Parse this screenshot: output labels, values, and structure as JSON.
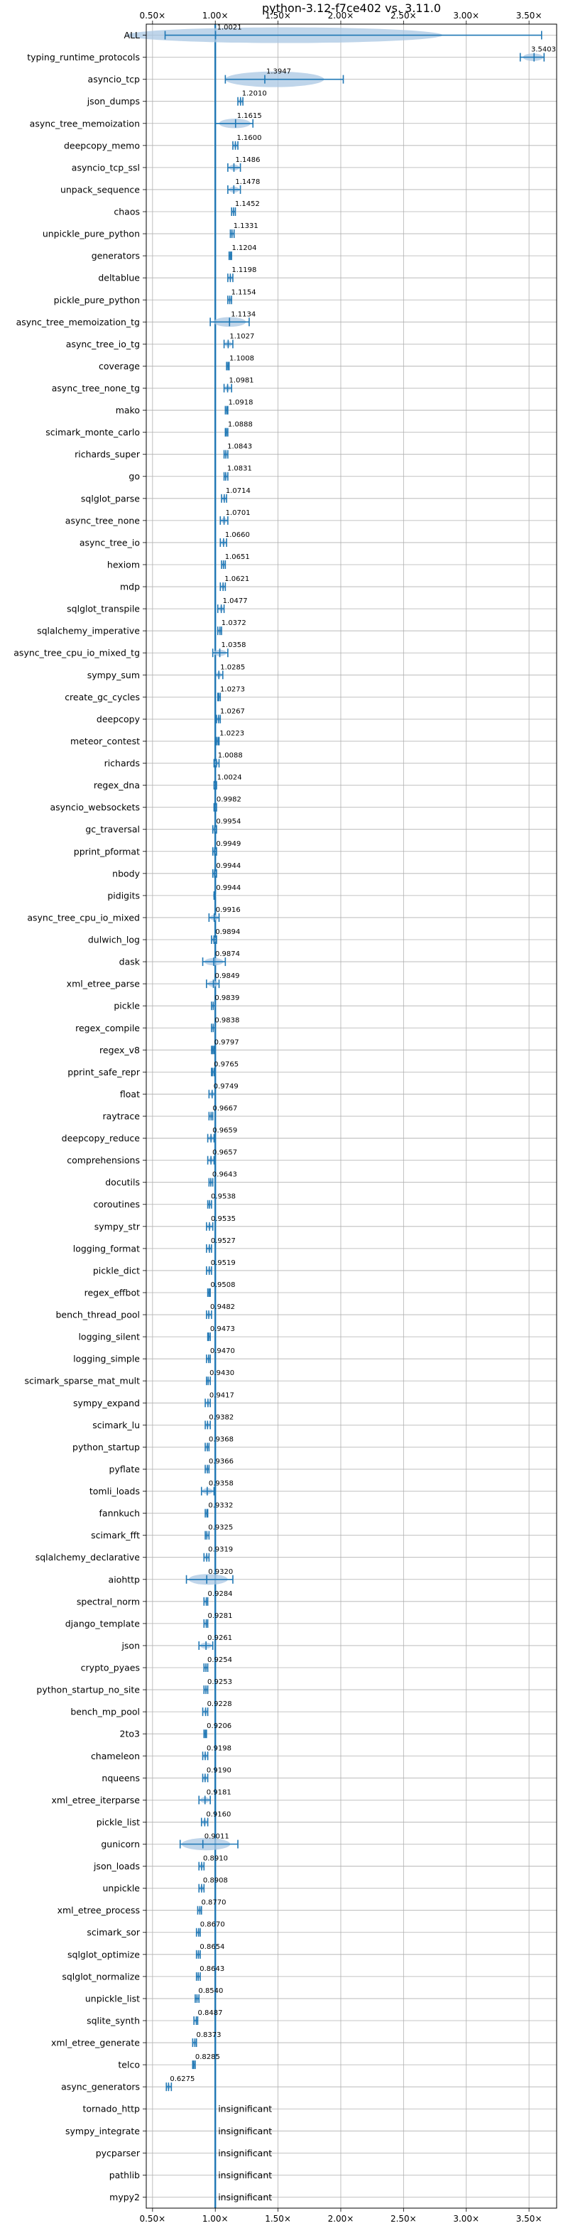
{
  "chart_data": {
    "type": "violin",
    "title": "python-3.12-f7ce402 vs. 3.11.0",
    "xlabel": "",
    "ylabel": "",
    "xlim": [
      0.45,
      3.72
    ],
    "xticks": [
      0.5,
      1.0,
      1.5,
      2.0,
      2.5,
      3.0,
      3.5
    ],
    "xtick_labels": [
      "0.50×",
      "1.00×",
      "1.50×",
      "2.00×",
      "2.50×",
      "3.00×",
      "3.50×"
    ],
    "reference_line": 1.0,
    "grid": true,
    "legend": "none",
    "accent_color": "#1f77b4",
    "violin_color": "#a9c7e3",
    "benchmarks": [
      {
        "name": "ALL",
        "value": 1.0021,
        "label": "1.0021",
        "lo": 0.6,
        "hi": 3.6
      },
      {
        "name": "typing_runtime_protocols",
        "value": 3.5403,
        "label": "3.5403",
        "lo": 3.43,
        "hi": 3.62
      },
      {
        "name": "asyncio_tcp",
        "value": 1.3947,
        "label": "1.3947",
        "lo": 1.08,
        "hi": 2.02
      },
      {
        "name": "json_dumps",
        "value": 1.201,
        "label": "1.2010",
        "lo": 1.18,
        "hi": 1.22
      },
      {
        "name": "async_tree_memoization",
        "value": 1.1615,
        "label": "1.1615",
        "lo": 1.0,
        "hi": 1.3
      },
      {
        "name": "deepcopy_memo",
        "value": 1.16,
        "label": "1.1600",
        "lo": 1.14,
        "hi": 1.18
      },
      {
        "name": "asyncio_tcp_ssl",
        "value": 1.1486,
        "label": "1.1486",
        "lo": 1.1,
        "hi": 1.2
      },
      {
        "name": "unpack_sequence",
        "value": 1.1478,
        "label": "1.1478",
        "lo": 1.1,
        "hi": 1.2
      },
      {
        "name": "chaos",
        "value": 1.1452,
        "label": "1.1452",
        "lo": 1.13,
        "hi": 1.16
      },
      {
        "name": "unpickle_pure_python",
        "value": 1.1331,
        "label": "1.1331",
        "lo": 1.12,
        "hi": 1.15
      },
      {
        "name": "generators",
        "value": 1.1204,
        "label": "1.1204",
        "lo": 1.11,
        "hi": 1.13
      },
      {
        "name": "deltablue",
        "value": 1.1198,
        "label": "1.1198",
        "lo": 1.1,
        "hi": 1.14
      },
      {
        "name": "pickle_pure_python",
        "value": 1.1154,
        "label": "1.1154",
        "lo": 1.1,
        "hi": 1.13
      },
      {
        "name": "async_tree_memoization_tg",
        "value": 1.1134,
        "label": "1.1134",
        "lo": 0.96,
        "hi": 1.27
      },
      {
        "name": "async_tree_io_tg",
        "value": 1.1027,
        "label": "1.1027",
        "lo": 1.07,
        "hi": 1.14
      },
      {
        "name": "coverage",
        "value": 1.1008,
        "label": "1.1008",
        "lo": 1.09,
        "hi": 1.11
      },
      {
        "name": "async_tree_none_tg",
        "value": 1.0981,
        "label": "1.0981",
        "lo": 1.07,
        "hi": 1.13
      },
      {
        "name": "mako",
        "value": 1.0918,
        "label": "1.0918",
        "lo": 1.08,
        "hi": 1.1
      },
      {
        "name": "scimark_monte_carlo",
        "value": 1.0888,
        "label": "1.0888",
        "lo": 1.08,
        "hi": 1.1
      },
      {
        "name": "richards_super",
        "value": 1.0843,
        "label": "1.0843",
        "lo": 1.07,
        "hi": 1.1
      },
      {
        "name": "go",
        "value": 1.0831,
        "label": "1.0831",
        "lo": 1.07,
        "hi": 1.1
      },
      {
        "name": "sqlglot_parse",
        "value": 1.0714,
        "label": "1.0714",
        "lo": 1.05,
        "hi": 1.09
      },
      {
        "name": "async_tree_none",
        "value": 1.0701,
        "label": "1.0701",
        "lo": 1.04,
        "hi": 1.1
      },
      {
        "name": "async_tree_io",
        "value": 1.066,
        "label": "1.0660",
        "lo": 1.04,
        "hi": 1.09
      },
      {
        "name": "hexiom",
        "value": 1.0651,
        "label": "1.0651",
        "lo": 1.05,
        "hi": 1.08
      },
      {
        "name": "mdp",
        "value": 1.0621,
        "label": "1.0621",
        "lo": 1.04,
        "hi": 1.08
      },
      {
        "name": "sqlglot_transpile",
        "value": 1.0477,
        "label": "1.0477",
        "lo": 1.02,
        "hi": 1.07
      },
      {
        "name": "sqlalchemy_imperative",
        "value": 1.0372,
        "label": "1.0372",
        "lo": 1.02,
        "hi": 1.05
      },
      {
        "name": "async_tree_cpu_io_mixed_tg",
        "value": 1.0358,
        "label": "1.0358",
        "lo": 0.98,
        "hi": 1.1
      },
      {
        "name": "sympy_sum",
        "value": 1.0285,
        "label": "1.0285",
        "lo": 1.0,
        "hi": 1.06
      },
      {
        "name": "create_gc_cycles",
        "value": 1.0273,
        "label": "1.0273",
        "lo": 1.02,
        "hi": 1.04
      },
      {
        "name": "deepcopy",
        "value": 1.0267,
        "label": "1.0267",
        "lo": 1.01,
        "hi": 1.04
      },
      {
        "name": "meteor_contest",
        "value": 1.0223,
        "label": "1.0223",
        "lo": 1.01,
        "hi": 1.03
      },
      {
        "name": "richards",
        "value": 1.0088,
        "label": "1.0088",
        "lo": 0.99,
        "hi": 1.03
      },
      {
        "name": "regex_dna",
        "value": 1.0024,
        "label": "1.0024",
        "lo": 0.99,
        "hi": 1.01
      },
      {
        "name": "asyncio_websockets",
        "value": 0.9982,
        "label": "0.9982",
        "lo": 0.99,
        "hi": 1.01
      },
      {
        "name": "gc_traversal",
        "value": 0.9954,
        "label": "0.9954",
        "lo": 0.98,
        "hi": 1.01
      },
      {
        "name": "pprint_pformat",
        "value": 0.9949,
        "label": "0.9949",
        "lo": 0.98,
        "hi": 1.01
      },
      {
        "name": "nbody",
        "value": 0.9944,
        "label": "0.9944",
        "lo": 0.98,
        "hi": 1.01
      },
      {
        "name": "pidigits",
        "value": 0.9944,
        "label": "0.9944",
        "lo": 0.99,
        "hi": 1.0
      },
      {
        "name": "async_tree_cpu_io_mixed",
        "value": 0.9916,
        "label": "0.9916",
        "lo": 0.95,
        "hi": 1.03
      },
      {
        "name": "dulwich_log",
        "value": 0.9894,
        "label": "0.9894",
        "lo": 0.97,
        "hi": 1.01
      },
      {
        "name": "dask",
        "value": 0.9874,
        "label": "0.9874",
        "lo": 0.9,
        "hi": 1.08
      },
      {
        "name": "xml_etree_parse",
        "value": 0.9849,
        "label": "0.9849",
        "lo": 0.93,
        "hi": 1.03
      },
      {
        "name": "pickle",
        "value": 0.9839,
        "label": "0.9839",
        "lo": 0.97,
        "hi": 1.0
      },
      {
        "name": "regex_compile",
        "value": 0.9838,
        "label": "0.9838",
        "lo": 0.97,
        "hi": 1.0
      },
      {
        "name": "regex_v8",
        "value": 0.9797,
        "label": "0.9797",
        "lo": 0.97,
        "hi": 0.99
      },
      {
        "name": "pprint_safe_repr",
        "value": 0.9765,
        "label": "0.9765",
        "lo": 0.97,
        "hi": 0.99
      },
      {
        "name": "float",
        "value": 0.9749,
        "label": "0.9749",
        "lo": 0.95,
        "hi": 1.0
      },
      {
        "name": "raytrace",
        "value": 0.9667,
        "label": "0.9667",
        "lo": 0.95,
        "hi": 0.98
      },
      {
        "name": "deepcopy_reduce",
        "value": 0.9659,
        "label": "0.9659",
        "lo": 0.94,
        "hi": 0.99
      },
      {
        "name": "comprehensions",
        "value": 0.9657,
        "label": "0.9657",
        "lo": 0.94,
        "hi": 0.99
      },
      {
        "name": "docutils",
        "value": 0.9643,
        "label": "0.9643",
        "lo": 0.95,
        "hi": 0.98
      },
      {
        "name": "coroutines",
        "value": 0.9538,
        "label": "0.9538",
        "lo": 0.94,
        "hi": 0.97
      },
      {
        "name": "sympy_str",
        "value": 0.9535,
        "label": "0.9535",
        "lo": 0.93,
        "hi": 0.98
      },
      {
        "name": "logging_format",
        "value": 0.9527,
        "label": "0.9527",
        "lo": 0.93,
        "hi": 0.97
      },
      {
        "name": "pickle_dict",
        "value": 0.9519,
        "label": "0.9519",
        "lo": 0.93,
        "hi": 0.97
      },
      {
        "name": "regex_effbot",
        "value": 0.9508,
        "label": "0.9508",
        "lo": 0.94,
        "hi": 0.96
      },
      {
        "name": "bench_thread_pool",
        "value": 0.9482,
        "label": "0.9482",
        "lo": 0.93,
        "hi": 0.97
      },
      {
        "name": "logging_silent",
        "value": 0.9473,
        "label": "0.9473",
        "lo": 0.94,
        "hi": 0.96
      },
      {
        "name": "logging_simple",
        "value": 0.947,
        "label": "0.9470",
        "lo": 0.93,
        "hi": 0.96
      },
      {
        "name": "scimark_sparse_mat_mult",
        "value": 0.943,
        "label": "0.9430",
        "lo": 0.93,
        "hi": 0.96
      },
      {
        "name": "sympy_expand",
        "value": 0.9417,
        "label": "0.9417",
        "lo": 0.92,
        "hi": 0.96
      },
      {
        "name": "scimark_lu",
        "value": 0.9382,
        "label": "0.9382",
        "lo": 0.92,
        "hi": 0.96
      },
      {
        "name": "python_startup",
        "value": 0.9368,
        "label": "0.9368",
        "lo": 0.92,
        "hi": 0.95
      },
      {
        "name": "pyflate",
        "value": 0.9366,
        "label": "0.9366",
        "lo": 0.92,
        "hi": 0.95
      },
      {
        "name": "tomli_loads",
        "value": 0.9358,
        "label": "0.9358",
        "lo": 0.89,
        "hi": 0.99
      },
      {
        "name": "fannkuch",
        "value": 0.9332,
        "label": "0.9332",
        "lo": 0.92,
        "hi": 0.94
      },
      {
        "name": "scimark_fft",
        "value": 0.9325,
        "label": "0.9325",
        "lo": 0.92,
        "hi": 0.95
      },
      {
        "name": "sqlalchemy_declarative",
        "value": 0.9319,
        "label": "0.9319",
        "lo": 0.91,
        "hi": 0.95
      },
      {
        "name": "aiohttp",
        "value": 0.932,
        "label": "0.9320",
        "lo": 0.77,
        "hi": 1.14
      },
      {
        "name": "spectral_norm",
        "value": 0.9284,
        "label": "0.9284",
        "lo": 0.91,
        "hi": 0.94
      },
      {
        "name": "django_template",
        "value": 0.9281,
        "label": "0.9281",
        "lo": 0.91,
        "hi": 0.94
      },
      {
        "name": "json",
        "value": 0.9261,
        "label": "0.9261",
        "lo": 0.87,
        "hi": 0.98
      },
      {
        "name": "crypto_pyaes",
        "value": 0.9254,
        "label": "0.9254",
        "lo": 0.91,
        "hi": 0.94
      },
      {
        "name": "python_startup_no_site",
        "value": 0.9253,
        "label": "0.9253",
        "lo": 0.91,
        "hi": 0.94
      },
      {
        "name": "bench_mp_pool",
        "value": 0.9228,
        "label": "0.9228",
        "lo": 0.9,
        "hi": 0.94
      },
      {
        "name": "2to3",
        "value": 0.9206,
        "label": "0.9206",
        "lo": 0.91,
        "hi": 0.93
      },
      {
        "name": "chameleon",
        "value": 0.9198,
        "label": "0.9198",
        "lo": 0.9,
        "hi": 0.94
      },
      {
        "name": "nqueens",
        "value": 0.919,
        "label": "0.9190",
        "lo": 0.9,
        "hi": 0.94
      },
      {
        "name": "xml_etree_iterparse",
        "value": 0.9181,
        "label": "0.9181",
        "lo": 0.87,
        "hi": 0.96
      },
      {
        "name": "pickle_list",
        "value": 0.916,
        "label": "0.9160",
        "lo": 0.89,
        "hi": 0.94
      },
      {
        "name": "gunicorn",
        "value": 0.9011,
        "label": "0.9011",
        "lo": 0.72,
        "hi": 1.18
      },
      {
        "name": "json_loads",
        "value": 0.891,
        "label": "0.8910",
        "lo": 0.87,
        "hi": 0.91
      },
      {
        "name": "unpickle",
        "value": 0.8908,
        "label": "0.8908",
        "lo": 0.87,
        "hi": 0.91
      },
      {
        "name": "xml_etree_process",
        "value": 0.877,
        "label": "0.8770",
        "lo": 0.86,
        "hi": 0.89
      },
      {
        "name": "scimark_sor",
        "value": 0.867,
        "label": "0.8670",
        "lo": 0.85,
        "hi": 0.88
      },
      {
        "name": "sqlglot_optimize",
        "value": 0.8654,
        "label": "0.8654",
        "lo": 0.85,
        "hi": 0.88
      },
      {
        "name": "sqlglot_normalize",
        "value": 0.8643,
        "label": "0.8643",
        "lo": 0.85,
        "hi": 0.88
      },
      {
        "name": "unpickle_list",
        "value": 0.854,
        "label": "0.8540",
        "lo": 0.84,
        "hi": 0.87
      },
      {
        "name": "sqlite_synth",
        "value": 0.8487,
        "label": "0.8487",
        "lo": 0.83,
        "hi": 0.86
      },
      {
        "name": "xml_etree_generate",
        "value": 0.8373,
        "label": "0.8373",
        "lo": 0.82,
        "hi": 0.85
      },
      {
        "name": "telco",
        "value": 0.8285,
        "label": "0.8285",
        "lo": 0.82,
        "hi": 0.84
      },
      {
        "name": "async_generators",
        "value": 0.6275,
        "label": "0.6275",
        "lo": 0.61,
        "hi": 0.65
      },
      {
        "name": "tornado_http",
        "value": null,
        "label": "insignificant"
      },
      {
        "name": "sympy_integrate",
        "value": null,
        "label": "insignificant"
      },
      {
        "name": "pycparser",
        "value": null,
        "label": "insignificant"
      },
      {
        "name": "pathlib",
        "value": null,
        "label": "insignificant"
      },
      {
        "name": "mypy2",
        "value": null,
        "label": "insignificant"
      }
    ]
  }
}
